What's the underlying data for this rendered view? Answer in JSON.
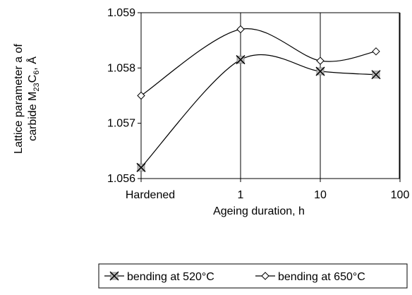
{
  "chart_data": {
    "type": "line",
    "xlabel": "Ageing duration, h",
    "ylabel_line1": "Lattice parameter a of",
    "ylabel_line2_prefix": "carbide M",
    "ylabel_sub1": "23",
    "ylabel_mid": "C",
    "ylabel_sub2": "6",
    "ylabel_suffix": ", Å",
    "x_scale": "log",
    "x_ticks": [
      "Hardened",
      "1",
      "10",
      "100"
    ],
    "y_ticks": [
      "1.056",
      "1.057",
      "1.058",
      "1.059"
    ],
    "ylim": [
      1.056,
      1.059
    ],
    "grid": "vertical-and-horizontal-at-1.059",
    "legend_position": "bottom",
    "series": [
      {
        "name": "bending at 520°C",
        "marker": "x-square",
        "color": "#000000",
        "x": [
          "Hardened",
          1,
          10,
          50
        ],
        "y": [
          1.0562,
          1.05815,
          1.05794,
          1.05788
        ]
      },
      {
        "name": "bending at 650°C",
        "marker": "diamond",
        "color": "#000000",
        "x": [
          "Hardened",
          1,
          10,
          50
        ],
        "y": [
          1.0575,
          1.0587,
          1.05813,
          1.0583
        ]
      }
    ]
  }
}
